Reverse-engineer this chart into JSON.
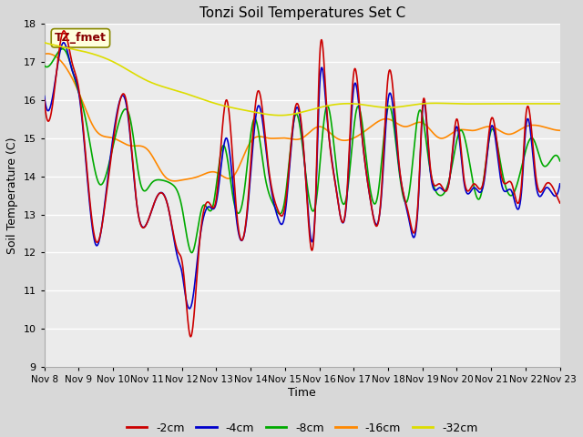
{
  "title": "Tonzi Soil Temperatures Set C",
  "xlabel": "Time",
  "ylabel": "Soil Temperature (C)",
  "ylim": [
    9.0,
    18.0
  ],
  "yticks": [
    9.0,
    10.0,
    11.0,
    12.0,
    13.0,
    14.0,
    15.0,
    16.0,
    17.0,
    18.0
  ],
  "xtick_labels": [
    "Nov 8",
    "Nov 9",
    "Nov 10",
    "Nov 11",
    "Nov 12",
    "Nov 13",
    "Nov 14",
    "Nov 15",
    "Nov 16",
    "Nov 17",
    "Nov 18",
    "Nov 19",
    "Nov 20",
    "Nov 21",
    "Nov 22",
    "Nov 23"
  ],
  "colors": {
    "2cm": "#cc0000",
    "4cm": "#0000cc",
    "8cm": "#00aa00",
    "16cm": "#ff8800",
    "32cm": "#dddd00"
  },
  "legend_labels": [
    "-2cm",
    "-4cm",
    "-8cm",
    "-16cm",
    "-32cm"
  ],
  "legend_colors": [
    "#cc0000",
    "#0000cc",
    "#00aa00",
    "#ff8800",
    "#dddd00"
  ],
  "annotation_text": "TZ_fmet",
  "annotation_color": "#880000",
  "annotation_bg": "#ffffdd",
  "lw": 1.2
}
